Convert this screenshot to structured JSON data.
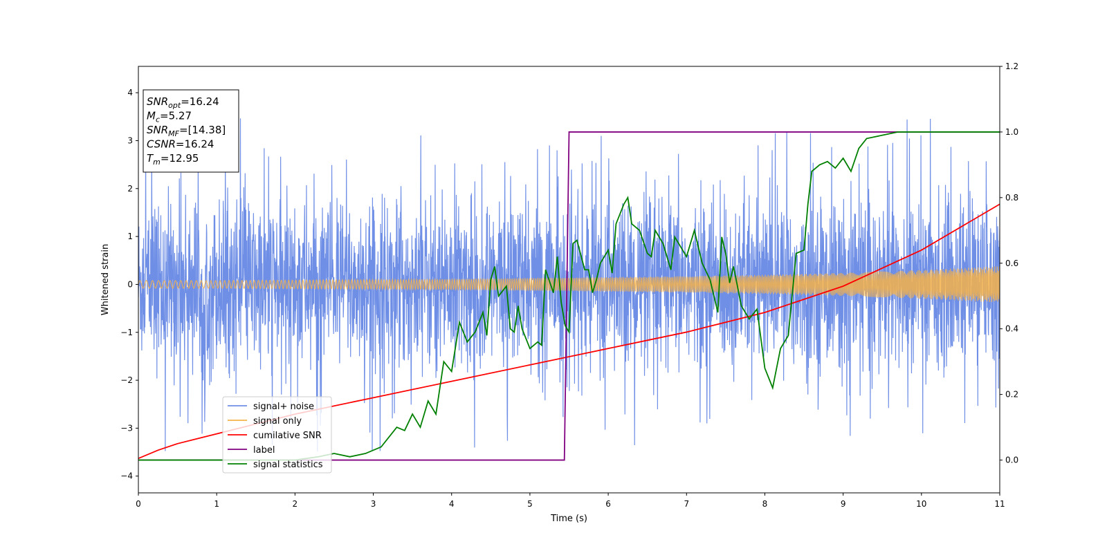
{
  "chart_data": {
    "type": "line",
    "xlabel": "Time (s)",
    "ylabel": "Whitened strain",
    "xlim": [
      0,
      11
    ],
    "ylim": [
      -4.35,
      4.55
    ],
    "ylim_right": [
      -0.1,
      1.2
    ],
    "x_ticks": [
      0,
      1,
      2,
      3,
      4,
      5,
      6,
      7,
      8,
      9,
      10,
      11
    ],
    "y_ticks": [
      -4,
      -3,
      -2,
      -1,
      0,
      1,
      2,
      3,
      4
    ],
    "y_ticks_right": [
      "0.0",
      "0.2",
      "0.4",
      "0.6",
      "0.8",
      "1.0",
      "1.2"
    ],
    "legend_position": "lower-left",
    "colors": {
      "signal_noise": "#6f8fe6",
      "signal_only": "#f5b24a",
      "cumulative_snr": "#ff0000",
      "label": "#800080",
      "signal_statistics": "#008000"
    },
    "series": [
      {
        "name": "signal+ noise",
        "axis": "left",
        "description_envelope": {
          "x": [
            0,
            11
          ],
          "typical_amplitude": 1.4,
          "spike_max": 4.15,
          "spike_min": -3.9
        }
      },
      {
        "name": "signal only",
        "axis": "left",
        "envelope_x": [
          0,
          1,
          2,
          3,
          4,
          5,
          6,
          7,
          8,
          9,
          10,
          11
        ],
        "envelope_amplitude": [
          0.08,
          0.08,
          0.09,
          0.1,
          0.11,
          0.13,
          0.15,
          0.17,
          0.2,
          0.24,
          0.3,
          0.38
        ]
      },
      {
        "name": "cumilative SNR",
        "axis": "right",
        "x": [
          0,
          0.25,
          0.5,
          1,
          2,
          3,
          4,
          5,
          6,
          7,
          8,
          9,
          10,
          11
        ],
        "y": [
          0.005,
          0.03,
          0.05,
          0.08,
          0.14,
          0.19,
          0.24,
          0.29,
          0.34,
          0.39,
          0.45,
          0.53,
          0.64,
          0.78
        ]
      },
      {
        "name": "label",
        "axis": "right",
        "x": [
          0,
          5.44,
          5.5,
          11
        ],
        "y": [
          0,
          0,
          1,
          1
        ]
      },
      {
        "name": "signal statistics",
        "axis": "right",
        "x": [
          0,
          1,
          2,
          2.3,
          2.5,
          2.7,
          2.9,
          3.1,
          3.3,
          3.4,
          3.5,
          3.6,
          3.7,
          3.8,
          3.9,
          4.0,
          4.1,
          4.2,
          4.3,
          4.4,
          4.45,
          4.5,
          4.55,
          4.6,
          4.7,
          4.75,
          4.8,
          4.85,
          4.9,
          5.0,
          5.1,
          5.15,
          5.2,
          5.3,
          5.35,
          5.4,
          5.45,
          5.5,
          5.55,
          5.6,
          5.7,
          5.75,
          5.8,
          5.85,
          5.9,
          6.0,
          6.05,
          6.1,
          6.2,
          6.25,
          6.3,
          6.4,
          6.5,
          6.55,
          6.6,
          6.7,
          6.8,
          6.85,
          6.9,
          7.0,
          7.1,
          7.2,
          7.3,
          7.4,
          7.45,
          7.5,
          7.55,
          7.6,
          7.7,
          7.8,
          7.9,
          8.0,
          8.05,
          8.1,
          8.2,
          8.3,
          8.4,
          8.5,
          8.55,
          8.6,
          8.7,
          8.8,
          8.9,
          9.0,
          9.1,
          9.2,
          9.3,
          9.5,
          9.7,
          9.9,
          10.2,
          10.6,
          11
        ],
        "y": [
          0.0,
          0.0,
          0.0,
          0.01,
          0.02,
          0.01,
          0.02,
          0.04,
          0.1,
          0.09,
          0.14,
          0.1,
          0.18,
          0.14,
          0.3,
          0.27,
          0.42,
          0.36,
          0.39,
          0.45,
          0.38,
          0.55,
          0.59,
          0.5,
          0.53,
          0.4,
          0.39,
          0.47,
          0.4,
          0.34,
          0.36,
          0.35,
          0.58,
          0.51,
          0.62,
          0.48,
          0.41,
          0.39,
          0.66,
          0.67,
          0.58,
          0.58,
          0.51,
          0.55,
          0.6,
          0.64,
          0.57,
          0.72,
          0.78,
          0.8,
          0.72,
          0.7,
          0.63,
          0.62,
          0.7,
          0.66,
          0.58,
          0.68,
          0.66,
          0.62,
          0.7,
          0.6,
          0.55,
          0.45,
          0.68,
          0.63,
          0.54,
          0.59,
          0.47,
          0.43,
          0.46,
          0.28,
          0.25,
          0.22,
          0.34,
          0.38,
          0.63,
          0.64,
          0.78,
          0.88,
          0.9,
          0.91,
          0.89,
          0.92,
          0.88,
          0.95,
          0.98,
          0.99,
          1.0,
          1.0,
          1.0,
          1.0,
          1.0
        ]
      }
    ],
    "info_box": {
      "lines": [
        {
          "sym": "SNR",
          "sub": "opt",
          "rest": "=16.24"
        },
        {
          "sym": "M",
          "sub": "c",
          "rest": "=5.27"
        },
        {
          "sym": "SNR",
          "sub": "MF",
          "rest": "=[14.38]"
        },
        {
          "sym": "CSNR",
          "sub": "",
          "rest": "=16.24"
        },
        {
          "sym": "T",
          "sub": "m",
          "rest": "=12.95"
        }
      ]
    }
  }
}
